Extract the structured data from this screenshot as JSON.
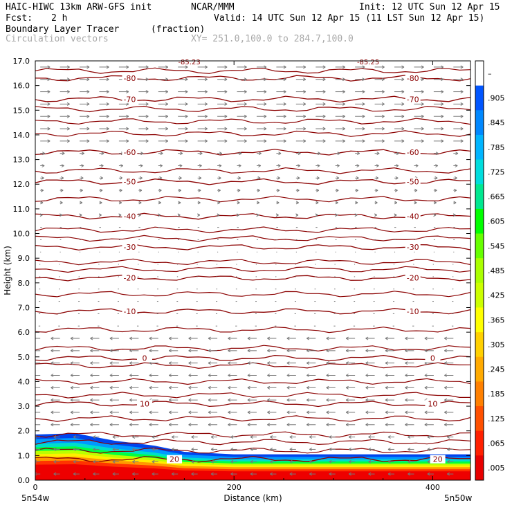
{
  "header": {
    "model": "HAIC-HIWC 13km ARW-GFS init",
    "org": "NCAR/MMM",
    "init": "Init: 12 UTC Sun 12 Apr 15",
    "fcst_label": "Fcst:",
    "fcst_value": "2 h",
    "valid": "Valid: 14 UTC Sun 12 Apr 15 (11 LST Sun 12 Apr 15)",
    "field": "Boundary Layer Tracer",
    "field_units": "(fraction)",
    "vectors": "Circulation vectors",
    "xy": "XY= 251.0,100.0 to 284.7,100.0"
  },
  "chart_data": {
    "type": "cross-section",
    "xlabel": "Distance (km)",
    "ylabel": "Height (km)",
    "xlim": [
      0,
      438
    ],
    "ylim": [
      0,
      17
    ],
    "x_ticks": [
      "0",
      "200",
      "400"
    ],
    "x_tick_values": [
      0,
      200,
      400
    ],
    "x_end_labels": [
      "5n54w",
      "5n50w"
    ],
    "y_ticks": [
      "0.0",
      "1.0",
      "2.0",
      "3.0",
      "4.0",
      "5.0",
      "6.0",
      "7.0",
      "8.0",
      "9.0",
      "10.0",
      "11.0",
      "12.0",
      "13.0",
      "14.0",
      "15.0",
      "16.0",
      "17.0"
    ],
    "colorbar_labels": [
      "–",
      ".905",
      ".845",
      ".785",
      ".725",
      ".665",
      ".605",
      ".545",
      ".485",
      ".425",
      ".365",
      ".305",
      ".245",
      ".185",
      ".125",
      ".065",
      ".005"
    ],
    "colorbar_colors": [
      "#ffffff",
      "#0055ff",
      "#0088ff",
      "#00b5ff",
      "#00dddd",
      "#00e890",
      "#00ff00",
      "#66ff00",
      "#aaff00",
      "#ccff00",
      "#ffff00",
      "#ffd000",
      "#ffaa00",
      "#ff8000",
      "#ff5000",
      "#ff2000",
      "#e80000"
    ],
    "temperature_contours": [
      {
        "label": "-80",
        "height_km": 16.3
      },
      {
        "label": "-70",
        "height_km": 15.45
      },
      {
        "label": "-60",
        "height_km": 13.3
      },
      {
        "label": "-50",
        "height_km": 12.1
      },
      {
        "label": "-40",
        "height_km": 10.7
      },
      {
        "label": "-30",
        "height_km": 9.45
      },
      {
        "label": "-20",
        "height_km": 8.2
      },
      {
        "label": "-10",
        "height_km": 6.85
      },
      {
        "label": "0",
        "height_km": 4.95
      },
      {
        "label": "10",
        "height_km": 3.1
      },
      {
        "label": "20",
        "height_km": 0.85
      }
    ],
    "unlabeled_contours_km": [
      16.6,
      15.05,
      14.55,
      14.05,
      12.55,
      11.4,
      10.15,
      9.8,
      8.85,
      8.55,
      7.55,
      6.1,
      5.35,
      4.65,
      4.0,
      3.45,
      2.5,
      1.85,
      1.55,
      1.2
    ],
    "top_labels": [
      "-85.23",
      "-85.25"
    ],
    "boundary_layer_top_km": [
      [
        0,
        1.85
      ],
      [
        40,
        1.9
      ],
      [
        80,
        1.6
      ],
      [
        120,
        1.4
      ],
      [
        150,
        1.15
      ],
      [
        200,
        1.05
      ],
      [
        300,
        1.05
      ],
      [
        438,
        1.05
      ]
    ]
  }
}
